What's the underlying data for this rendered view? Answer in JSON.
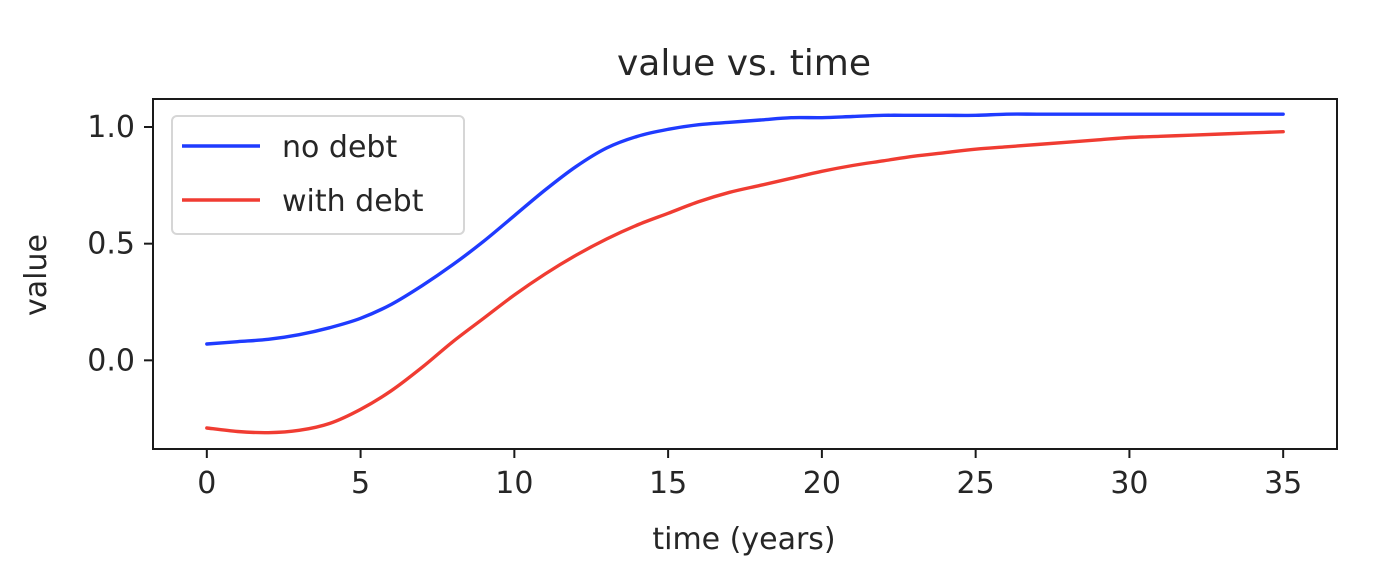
{
  "chart_data": {
    "type": "line",
    "title": "value vs. time",
    "xlabel": "time (years)",
    "ylabel": "value",
    "xlim": [
      -1.75,
      36.75
    ],
    "ylim": [
      -0.38,
      1.12
    ],
    "xticks": [
      0,
      5,
      10,
      15,
      20,
      25,
      30,
      35
    ],
    "xtick_labels": [
      "0",
      "5",
      "10",
      "15",
      "20",
      "25",
      "30",
      "35"
    ],
    "yticks": [
      0.0,
      0.5,
      1.0
    ],
    "ytick_labels": [
      "0.0",
      "0.5",
      "1.0"
    ],
    "grid": false,
    "legend_position": "upper-left",
    "x": [
      0,
      1,
      2,
      3,
      4,
      5,
      6,
      7,
      8,
      9,
      10,
      11,
      12,
      13,
      14,
      15,
      16,
      17,
      18,
      19,
      20,
      21,
      22,
      23,
      24,
      25,
      26,
      27,
      28,
      29,
      30,
      31,
      32,
      33,
      34,
      35
    ],
    "series": [
      {
        "name": "no debt",
        "color": "#1f3bff",
        "values": [
          0.07,
          0.08,
          0.09,
          0.11,
          0.14,
          0.18,
          0.24,
          0.32,
          0.41,
          0.51,
          0.62,
          0.73,
          0.83,
          0.91,
          0.96,
          0.99,
          1.01,
          1.02,
          1.03,
          1.04,
          1.04,
          1.045,
          1.05,
          1.05,
          1.05,
          1.05,
          1.055,
          1.055,
          1.055,
          1.055,
          1.055,
          1.055,
          1.055,
          1.055,
          1.055,
          1.055
        ]
      },
      {
        "name": "with debt",
        "color": "#f03c32",
        "values": [
          -0.29,
          -0.305,
          -0.31,
          -0.3,
          -0.27,
          -0.21,
          -0.13,
          -0.03,
          0.08,
          0.18,
          0.28,
          0.37,
          0.45,
          0.52,
          0.58,
          0.63,
          0.68,
          0.72,
          0.75,
          0.78,
          0.81,
          0.835,
          0.855,
          0.875,
          0.89,
          0.905,
          0.915,
          0.925,
          0.935,
          0.945,
          0.955,
          0.96,
          0.965,
          0.97,
          0.975,
          0.98
        ]
      }
    ]
  }
}
